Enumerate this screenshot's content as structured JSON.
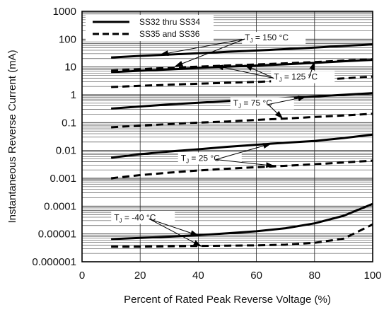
{
  "chart_data": {
    "type": "line",
    "title": "",
    "xlabel": "Percent of Rated Peak Reverse Voltage (%)",
    "ylabel": "Instantaneous Reverse Current (mA)",
    "xlim": [
      0,
      100
    ],
    "ylim": [
      1e-06,
      1000
    ],
    "y_scale": "log",
    "grid": true,
    "x_ticks": [
      {
        "value": 0,
        "label": "0"
      },
      {
        "value": 20,
        "label": "20"
      },
      {
        "value": 40,
        "label": "40"
      },
      {
        "value": 60,
        "label": "60"
      },
      {
        "value": 80,
        "label": "80"
      },
      {
        "value": 100,
        "label": "100"
      }
    ],
    "y_ticks": [
      {
        "value": 1000,
        "label": "1000"
      },
      {
        "value": 100,
        "label": "100"
      },
      {
        "value": 10,
        "label": "10"
      },
      {
        "value": 1,
        "label": "1"
      },
      {
        "value": 0.1,
        "label": "0.1"
      },
      {
        "value": 0.01,
        "label": "0.01"
      },
      {
        "value": 0.001,
        "label": "0.001"
      },
      {
        "value": 0.0001,
        "label": "0.0001"
      },
      {
        "value": 1e-05,
        "label": "0.00001"
      },
      {
        "value": 1e-06,
        "label": "0.000001"
      }
    ],
    "legend": {
      "placement": "top-left",
      "entries": [
        {
          "label": "SS32 thru SS34",
          "style": "solid"
        },
        {
          "label": "SS35 and SS36",
          "style": "dashed"
        }
      ]
    },
    "series": [
      {
        "legend": "SS32 thru SS34",
        "group": "TJ = 150 °C",
        "style": "solid",
        "x": [
          10,
          20,
          30,
          40,
          50,
          60,
          70,
          80,
          90,
          100
        ],
        "y": [
          22,
          25,
          28,
          31,
          35,
          39,
          44,
          50,
          57,
          65
        ]
      },
      {
        "legend": "SS35 and SS36",
        "group": "TJ = 150 °C",
        "style": "dashed",
        "x": [
          10,
          20,
          30,
          40,
          50,
          60,
          70,
          80,
          90,
          100
        ],
        "y": [
          7.5,
          8.3,
          9.3,
          10.3,
          11.3,
          12.3,
          13.5,
          15,
          17,
          19
        ]
      },
      {
        "legend": "SS32 thru SS34",
        "group": "TJ = 125 °C",
        "style": "solid",
        "x": [
          10,
          20,
          30,
          40,
          50,
          60,
          70,
          80,
          90,
          100
        ],
        "y": [
          6.5,
          7.3,
          8.2,
          9.2,
          10.2,
          11.3,
          12.5,
          14,
          16,
          18
        ]
      },
      {
        "legend": "SS35 and SS36",
        "group": "TJ = 125 °C",
        "style": "dashed",
        "x": [
          10,
          20,
          30,
          40,
          50,
          60,
          70,
          80,
          90,
          100
        ],
        "y": [
          1.9,
          2.1,
          2.3,
          2.5,
          2.7,
          2.9,
          3.2,
          3.5,
          3.9,
          4.5
        ]
      },
      {
        "legend": "SS32 thru SS34",
        "group": "TJ = 75 °C",
        "style": "solid",
        "x": [
          10,
          20,
          30,
          40,
          50,
          60,
          70,
          80,
          90,
          100
        ],
        "y": [
          0.32,
          0.38,
          0.45,
          0.52,
          0.6,
          0.68,
          0.77,
          0.87,
          1.0,
          1.15
        ]
      },
      {
        "legend": "SS35 and SS36",
        "group": "TJ = 75 °C",
        "style": "dashed",
        "x": [
          10,
          20,
          30,
          40,
          50,
          60,
          70,
          80,
          90,
          100
        ],
        "y": [
          0.068,
          0.078,
          0.088,
          0.1,
          0.11,
          0.125,
          0.14,
          0.16,
          0.18,
          0.21
        ]
      },
      {
        "legend": "SS32 thru SS34",
        "group": "TJ = 25 °C",
        "style": "solid",
        "x": [
          10,
          20,
          30,
          40,
          50,
          60,
          70,
          80,
          90,
          100
        ],
        "y": [
          0.0055,
          0.0073,
          0.0092,
          0.011,
          0.0135,
          0.016,
          0.019,
          0.022,
          0.028,
          0.037
        ]
      },
      {
        "legend": "SS35 and SS36",
        "group": "TJ = 25 °C",
        "style": "dashed",
        "x": [
          10,
          20,
          30,
          40,
          50,
          60,
          70,
          80,
          90,
          100
        ],
        "y": [
          0.001,
          0.0013,
          0.0016,
          0.0019,
          0.0022,
          0.0025,
          0.0028,
          0.0032,
          0.0037,
          0.0043
        ]
      },
      {
        "legend": "SS32 thru SS34",
        "group": "TJ = -40 °C",
        "style": "solid",
        "x": [
          10,
          20,
          30,
          40,
          50,
          60,
          70,
          80,
          90,
          100
        ],
        "y": [
          6.5e-06,
          7.2e-06,
          8e-06,
          9e-06,
          1.05e-05,
          1.25e-05,
          1.6e-05,
          2.4e-05,
          4.5e-05,
          0.00012
        ]
      },
      {
        "legend": "SS35 and SS36",
        "group": "TJ = -40 °C",
        "style": "dashed",
        "x": [
          10,
          20,
          30,
          40,
          50,
          60,
          70,
          80,
          90,
          100
        ],
        "y": [
          3.5e-06,
          3.5e-06,
          3.6e-06,
          3.7e-06,
          3.8e-06,
          3.9e-06,
          4.1e-06,
          4.8e-06,
          6.8e-06,
          2.2e-05
        ]
      }
    ],
    "annotations": [
      {
        "text": "T",
        "subscript": "J",
        "suffix": " = 150 °C",
        "group": "TJ = 150 °C",
        "at": [
          56,
          90
        ],
        "arrows_to": [
          [
            27,
            28
          ],
          [
            32,
            10.5
          ]
        ]
      },
      {
        "text": "T",
        "subscript": "J",
        "suffix": " = 125 °C",
        "group": "TJ = 125 °C",
        "at": [
          66,
          3.5
        ],
        "arrows_to": [
          [
            46,
            11
          ],
          [
            56,
            11.7
          ],
          [
            80,
            15
          ]
        ]
      },
      {
        "text": "T",
        "subscript": "J",
        "suffix": " = 75 °C",
        "group": "TJ = 75 °C",
        "at": [
          52,
          0.4
        ],
        "arrows_to": [
          [
            77,
            0.85
          ],
          [
            69,
            0.142
          ]
        ]
      },
      {
        "text": "T",
        "subscript": "J",
        "suffix": " = 25 °C",
        "group": "TJ = 25 °C",
        "at": [
          34,
          0.0042
        ],
        "arrows_to": [
          [
            65,
            0.0175
          ],
          [
            66,
            0.0028
          ]
        ]
      },
      {
        "text": "T",
        "subscript": "J",
        "suffix": " = -40 °C",
        "group": "TJ = -40 °C",
        "at": [
          11,
          3.1e-05
        ],
        "arrows_to": [
          [
            40,
            8.8e-06
          ],
          [
            41,
            3.6e-06
          ]
        ]
      }
    ]
  }
}
